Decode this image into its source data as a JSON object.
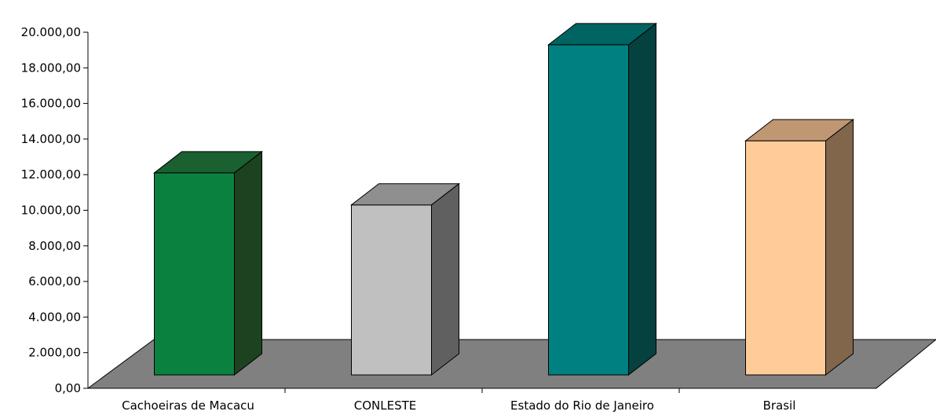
{
  "chart_data": {
    "type": "bar",
    "style": "3d-columns",
    "categories": [
      "Cachoeiras de Macacu",
      "CONLESTE",
      "Estado do Rio de Janeiro",
      "Brasil"
    ],
    "values": [
      12100,
      10300,
      19300,
      13900
    ],
    "ylim": [
      0,
      20000
    ],
    "yticks": [
      "0,00",
      "2.000,00",
      "4.000,00",
      "6.000,00",
      "8.000,00",
      "10.000,00",
      "12.000,00",
      "14.000,00",
      "16.000,00",
      "18.000,00",
      "20.000,00"
    ],
    "title": "",
    "xlabel": "",
    "ylabel": "",
    "grid": false,
    "legend": "none",
    "floor_color": "#808080",
    "bar_colors": [
      {
        "front": "#0b8140",
        "top": "#1a6030",
        "side": "#1c4220"
      },
      {
        "front": "#c0c0c0",
        "top": "#8f8f8f",
        "side": "#606060"
      },
      {
        "front": "#008080",
        "top": "#006462",
        "side": "#04413f"
      },
      {
        "front": "#ffcc99",
        "top": "#c09773",
        "side": "#81664c"
      }
    ]
  }
}
